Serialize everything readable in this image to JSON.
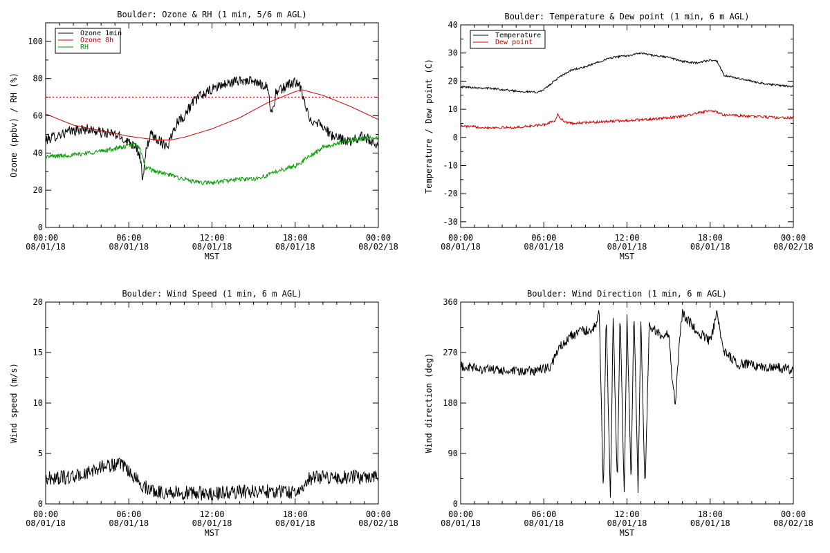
{
  "chart_data": [
    {
      "id": "ozone_rh",
      "type": "line",
      "title": "Boulder: Ozone & RH (1 min, 5/6 m AGL)",
      "ylabel": "Ozone (ppbv) / RH (%)",
      "xlabel": "MST",
      "xlim": [
        0,
        24
      ],
      "ylim": [
        0,
        110
      ],
      "yticks": [
        0,
        20,
        40,
        60,
        80,
        100
      ],
      "xticks": [
        0,
        6,
        12,
        18,
        24
      ],
      "xtick_labels": [
        [
          "00:00",
          "08/01/18"
        ],
        [
          "06:00",
          "08/01/18"
        ],
        [
          "12:00",
          "08/01/18"
        ],
        [
          "18:00",
          "08/01/18"
        ],
        [
          "00:00",
          "08/02/18"
        ]
      ],
      "legend": {
        "position": "top-left",
        "entries": [
          {
            "label": "Ozone 1min",
            "color": "#000000"
          },
          {
            "label": "Ozone 8h",
            "color": "#cc0000"
          },
          {
            "label": "RH",
            "color": "#009900"
          }
        ]
      },
      "reference_lines": [
        {
          "y": 70,
          "color": "#ff0000",
          "style": "dotted"
        }
      ],
      "series": [
        {
          "name": "Ozone 1min",
          "color": "#000000",
          "noise": 2.8,
          "x": [
            0,
            1,
            2,
            3,
            4,
            5,
            6,
            6.5,
            6.8,
            7,
            7.3,
            7.6,
            8,
            8.5,
            8.8,
            9.2,
            9.5,
            10,
            10.5,
            11,
            11.5,
            12,
            12.5,
            13,
            13.5,
            14,
            14.5,
            15,
            15.5,
            16,
            16.3,
            16.6,
            17,
            17.5,
            18,
            18.3,
            18.6,
            19,
            19.5,
            20,
            20.5,
            21,
            21.5,
            22,
            22.5,
            23,
            23.5,
            24
          ],
          "y": [
            47,
            50,
            52,
            53,
            51,
            50,
            46,
            44,
            38,
            25,
            44,
            50,
            48,
            45,
            44,
            52,
            57,
            60,
            66,
            70,
            72,
            74,
            76,
            77,
            78,
            79,
            79,
            78,
            77,
            76,
            60,
            72,
            74,
            77,
            78,
            76,
            70,
            58,
            57,
            55,
            50,
            48,
            47,
            46,
            48,
            49,
            46,
            45
          ]
        },
        {
          "name": "Ozone 8h",
          "color": "#cc0000",
          "noise": 0,
          "x": [
            0,
            2,
            4,
            6,
            8,
            9,
            10,
            12,
            14,
            16,
            18,
            18.5,
            20,
            22,
            24
          ],
          "y": [
            61,
            55,
            52,
            49,
            47,
            47,
            48.5,
            53,
            59,
            67,
            73,
            74,
            71,
            65,
            58
          ]
        },
        {
          "name": "RH",
          "color": "#009900",
          "noise": 1.2,
          "x": [
            0,
            2,
            4,
            5.5,
            6.5,
            6.8,
            7.2,
            8,
            9,
            10,
            11,
            12,
            13,
            14,
            15,
            16,
            17,
            18,
            19,
            20,
            21,
            22,
            23,
            24
          ],
          "y": [
            38,
            39,
            41,
            43,
            45,
            42,
            32,
            30,
            28,
            26,
            24,
            24,
            25,
            26,
            26,
            28,
            31,
            33,
            38,
            43,
            45,
            47,
            48,
            48
          ]
        }
      ]
    },
    {
      "id": "temp_dew",
      "type": "line",
      "title": "Boulder: Temperature & Dew point (1 min, 6 m AGL)",
      "ylabel": "Temperature / Dew point (C)",
      "xlabel": "MST",
      "xlim": [
        0,
        24
      ],
      "ylim": [
        -32,
        40
      ],
      "yticks": [
        -30,
        -20,
        -10,
        0,
        10,
        20,
        30,
        40
      ],
      "xticks": [
        0,
        6,
        12,
        18,
        24
      ],
      "xtick_labels": [
        [
          "00:00",
          "08/01/18"
        ],
        [
          "06:00",
          "08/01/18"
        ],
        [
          "12:00",
          "08/01/18"
        ],
        [
          "18:00",
          "08/01/18"
        ],
        [
          "00:00",
          "08/02/18"
        ]
      ],
      "legend": {
        "position": "top-left",
        "entries": [
          {
            "label": "Temperature",
            "color": "#000000"
          },
          {
            "label": "Dew point",
            "color": "#cc0000"
          }
        ]
      },
      "series": [
        {
          "name": "Temperature",
          "color": "#000000",
          "noise": 0.35,
          "x": [
            0,
            2,
            4,
            5.5,
            6,
            7,
            8,
            9,
            10,
            11,
            12,
            13,
            14,
            15,
            16,
            17,
            18,
            18.5,
            19,
            20,
            21,
            22,
            23,
            24
          ],
          "y": [
            18,
            17.5,
            16.5,
            16,
            17,
            21,
            24,
            25,
            27,
            28.5,
            29,
            30,
            29,
            28.5,
            27,
            26.5,
            27.5,
            27,
            22,
            21,
            20,
            19,
            18.5,
            18
          ]
        },
        {
          "name": "Dew point",
          "color": "#cc0000",
          "noise": 0.45,
          "x": [
            0,
            2,
            4,
            6,
            6.8,
            7,
            7.5,
            8,
            10,
            12,
            14,
            16,
            18,
            18.5,
            19,
            21,
            23,
            24
          ],
          "y": [
            4,
            3.5,
            3.5,
            4.5,
            6,
            8,
            5.5,
            5,
            5.5,
            6,
            6.5,
            7.5,
            9.5,
            9,
            8,
            7.5,
            7,
            7
          ]
        }
      ]
    },
    {
      "id": "wind_speed",
      "type": "line",
      "title": "Boulder: Wind Speed (1 min, 6 m AGL)",
      "ylabel": "Wind speed (m/s)",
      "xlabel": "MST",
      "xlim": [
        0,
        24
      ],
      "ylim": [
        0,
        20
      ],
      "yticks": [
        0,
        5,
        10,
        15,
        20
      ],
      "xticks": [
        0,
        6,
        12,
        18,
        24
      ],
      "xtick_labels": [
        [
          "00:00",
          "08/01/18"
        ],
        [
          "06:00",
          "08/01/18"
        ],
        [
          "12:00",
          "08/01/18"
        ],
        [
          "18:00",
          "08/01/18"
        ],
        [
          "00:00",
          "08/02/18"
        ]
      ],
      "series": [
        {
          "name": "",
          "color": "#000000",
          "noise": 0.7,
          "x": [
            0,
            2,
            3,
            4,
            5,
            5.5,
            6,
            7,
            8,
            10,
            12,
            14,
            16,
            18,
            18.5,
            19,
            20,
            22,
            24
          ],
          "y": [
            2.5,
            2.7,
            3,
            3.7,
            3.9,
            3.8,
            3.2,
            1.8,
            1.2,
            1.1,
            1.0,
            1.2,
            1.3,
            1.2,
            1.3,
            2.5,
            2.7,
            2.6,
            2.8
          ]
        }
      ]
    },
    {
      "id": "wind_dir",
      "type": "line",
      "title": "Boulder: Wind Direction (1 min, 6 m AGL)",
      "ylabel": "Wind direction (deg)",
      "xlabel": "MST",
      "xlim": [
        0,
        24
      ],
      "ylim": [
        0,
        360
      ],
      "yticks": [
        0,
        90,
        180,
        270,
        360
      ],
      "xticks": [
        0,
        6,
        12,
        18,
        24
      ],
      "xtick_labels": [
        [
          "00:00",
          "08/01/18"
        ],
        [
          "06:00",
          "08/01/18"
        ],
        [
          "12:00",
          "08/01/18"
        ],
        [
          "18:00",
          "08/01/18"
        ],
        [
          "00:00",
          "08/02/18"
        ]
      ],
      "series": [
        {
          "name": "",
          "color": "#000000",
          "noise": 9,
          "x": [
            0,
            2,
            4,
            6,
            6.5,
            7,
            8,
            9,
            9.5,
            10,
            10.3,
            10.5,
            10.8,
            11,
            11.3,
            11.5,
            11.8,
            12,
            12.3,
            12.5,
            12.8,
            13,
            13.3,
            13.6,
            14,
            14.5,
            15,
            15.3,
            15.5,
            15.8,
            16,
            17,
            18,
            18.5,
            19,
            20,
            22,
            24
          ],
          "y": [
            245,
            240,
            235,
            240,
            245,
            275,
            300,
            310,
            305,
            340,
            20,
            350,
            5,
            340,
            30,
            345,
            15,
            340,
            40,
            350,
            25,
            330,
            20,
            320,
            310,
            300,
            305,
            210,
            180,
            300,
            340,
            310,
            290,
            340,
            270,
            250,
            245,
            240
          ]
        }
      ]
    }
  ]
}
